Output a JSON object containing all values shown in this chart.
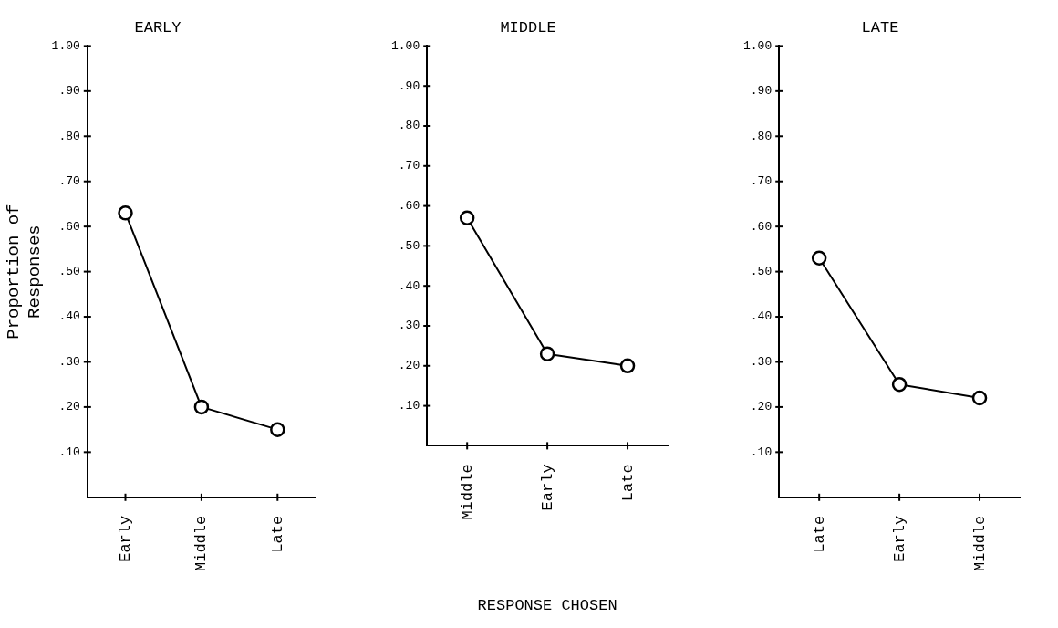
{
  "chart_data": [
    {
      "type": "line",
      "title": "EARLY",
      "ylabel": "Proportion of\nResponses",
      "categories": [
        "Early",
        "Middle",
        "Late"
      ],
      "series": [
        {
          "color": "#000000",
          "values": [
            0.63,
            0.2,
            0.15
          ]
        }
      ],
      "ylim": [
        0,
        1
      ],
      "yticks": [
        {
          "value": 0.1,
          "label": ".10"
        },
        {
          "value": 0.2,
          "label": ".20"
        },
        {
          "value": 0.3,
          "label": ".30"
        },
        {
          "value": 0.4,
          "label": ".40"
        },
        {
          "value": 0.5,
          "label": ".50"
        },
        {
          "value": 0.6,
          "label": ".60"
        },
        {
          "value": 0.7,
          "label": ".70"
        },
        {
          "value": 0.8,
          "label": ".80"
        },
        {
          "value": 0.9,
          "label": ".90"
        },
        {
          "value": 1,
          "label": "1.00"
        }
      ],
      "grid": false,
      "legend": false,
      "marker": "circle",
      "line_style": "solid"
    },
    {
      "type": "line",
      "title": "MIDDLE",
      "xlabel": "RESPONSE CHOSEN",
      "categories": [
        "Middle",
        "Early",
        "Late"
      ],
      "series": [
        {
          "color": "#000000",
          "values": [
            0.57,
            0.23,
            0.2
          ]
        }
      ],
      "ylim": [
        0,
        1
      ],
      "yticks": [
        {
          "value": 0.1,
          "label": ".10"
        },
        {
          "value": 0.2,
          "label": ".20"
        },
        {
          "value": 0.3,
          "label": ".30"
        },
        {
          "value": 0.4,
          "label": ".40"
        },
        {
          "value": 0.5,
          "label": ".50"
        },
        {
          "value": 0.6,
          "label": ".60"
        },
        {
          "value": 0.7,
          "label": ".70"
        },
        {
          "value": 0.8,
          "label": ".80"
        },
        {
          "value": 0.9,
          "label": ".90"
        },
        {
          "value": 1,
          "label": "1.00"
        }
      ],
      "grid": false,
      "legend": false,
      "marker": "circle",
      "line_style": "solid"
    },
    {
      "type": "line",
      "title": "LATE",
      "categories": [
        "Late",
        "Early",
        "Middle"
      ],
      "series": [
        {
          "color": "#000000",
          "values": [
            0.53,
            0.25,
            0.22
          ]
        }
      ],
      "ylim": [
        0,
        1
      ],
      "yticks": [
        {
          "value": 0.1,
          "label": ".10"
        },
        {
          "value": 0.2,
          "label": ".20"
        },
        {
          "value": 0.3,
          "label": ".30"
        },
        {
          "value": 0.4,
          "label": ".40"
        },
        {
          "value": 0.5,
          "label": ".50"
        },
        {
          "value": 0.6,
          "label": ".60"
        },
        {
          "value": 0.7,
          "label": ".70"
        },
        {
          "value": 0.8,
          "label": ".80"
        },
        {
          "value": 0.9,
          "label": ".90"
        },
        {
          "value": 1,
          "label": "1.00"
        }
      ],
      "grid": false,
      "legend": false,
      "marker": "circle",
      "line_style": "solid"
    }
  ]
}
